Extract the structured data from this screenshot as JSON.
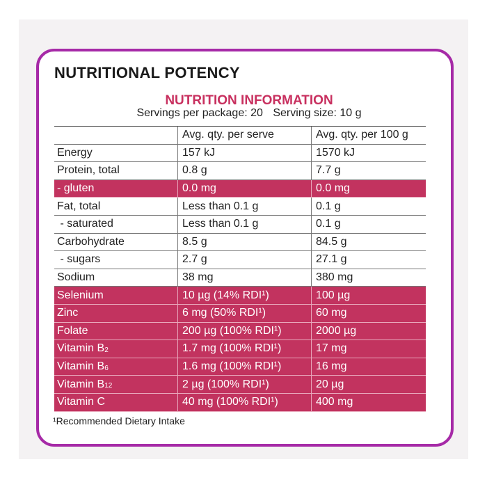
{
  "title": "NUTRITIONAL POTENCY",
  "table": {
    "heading": "NUTRITION INFORMATION",
    "servings_per_package": "Servings per package: 20",
    "serving_size": "Serving size: 10 g",
    "columns": [
      "Avg. qty. per serve",
      "Avg. qty. per 100 g"
    ],
    "rows": [
      {
        "label": "Energy",
        "per_serve": "157 kJ",
        "per_100g": "1570 kJ",
        "highlight": false
      },
      {
        "label": "Protein, total",
        "per_serve": "0.8 g",
        "per_100g": "7.7 g",
        "highlight": false
      },
      {
        "label": "- gluten",
        "per_serve": "0.0 mg",
        "per_100g": "0.0 mg",
        "highlight": true
      },
      {
        "label": "Fat, total",
        "per_serve": "Less than 0.1 g",
        "per_100g": "0.1 g",
        "highlight": false
      },
      {
        "label": " - saturated",
        "per_serve": "Less than 0.1 g",
        "per_100g": "0.1 g",
        "highlight": false
      },
      {
        "label": "Carbohydrate",
        "per_serve": "8.5 g",
        "per_100g": "84.5 g",
        "highlight": false
      },
      {
        "label": " - sugars",
        "per_serve": "2.7 g",
        "per_100g": "27.1 g",
        "highlight": false
      },
      {
        "label": "Sodium",
        "per_serve": "38 mg",
        "per_100g": "380 mg",
        "highlight": false
      },
      {
        "label": "Selenium",
        "per_serve": "10 µg (14% RDI¹)",
        "per_100g": "100 µg",
        "highlight": true
      },
      {
        "label": "Zinc",
        "per_serve": "6 mg (50% RDI¹)",
        "per_100g": "60 mg",
        "highlight": true
      },
      {
        "label": "Folate",
        "per_serve": "200 µg (100% RDI¹)",
        "per_100g": "2000 µg",
        "highlight": true
      },
      {
        "label": "Vitamin B",
        "sub": "2",
        "per_serve": "1.7 mg (100% RDI¹)",
        "per_100g": "17 mg",
        "highlight": true
      },
      {
        "label": "Vitamin B",
        "sub": "6",
        "per_serve": "1.6 mg (100% RDI¹)",
        "per_100g": "16 mg",
        "highlight": true
      },
      {
        "label": "Vitamin B",
        "sub": "12",
        "per_serve": "2 µg (100% RDI¹)",
        "per_100g": "20 µg",
        "highlight": true
      },
      {
        "label": "Vitamin C",
        "per_serve": "40 mg (100% RDI¹)",
        "per_100g": "400 mg",
        "highlight": true
      }
    ],
    "footnote": "¹Recommended Dietary Intake"
  }
}
